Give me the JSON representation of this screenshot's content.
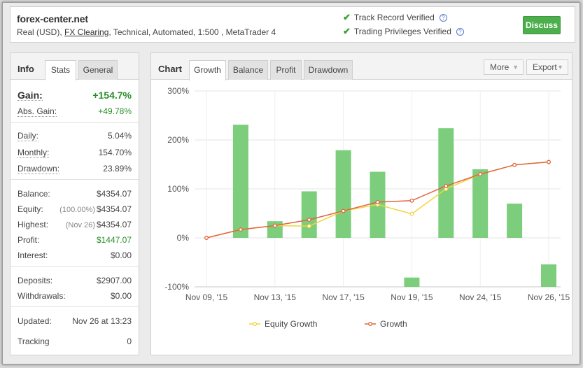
{
  "header": {
    "site": "forex-center.net",
    "desc_prefix": "Real (USD), ",
    "desc_link": "FX Clearing",
    "desc_suffix": ", Technical, Automated, 1:500 , MetaTrader 4",
    "verified_1": "Track Record Verified",
    "verified_2": "Trading Privileges Verified",
    "discuss_label": "Discuss"
  },
  "info": {
    "title": "Info",
    "tabs": [
      "Stats",
      "General"
    ],
    "gain_label": "Gain:",
    "gain_value": "+154.7%",
    "abs_gain_label": "Abs. Gain:",
    "abs_gain_value": "+49.78%",
    "daily_label": "Daily:",
    "daily_value": "5.04%",
    "monthly_label": "Monthly:",
    "monthly_value": "154.70%",
    "drawdown_label": "Drawdown:",
    "drawdown_value": "23.89%",
    "balance_label": "Balance:",
    "balance_value": "$4354.07",
    "equity_label": "Equity:",
    "equity_sub": "(100.00%)",
    "equity_value": "$4354.07",
    "highest_label": "Highest:",
    "highest_sub": "(Nov 26)",
    "highest_value": "$4354.07",
    "profit_label": "Profit:",
    "profit_value": "$1447.07",
    "interest_label": "Interest:",
    "interest_value": "$0.00",
    "deposits_label": "Deposits:",
    "deposits_value": "$2907.00",
    "withdrawals_label": "Withdrawals:",
    "withdrawals_value": "$0.00",
    "updated_label": "Updated:",
    "updated_value": "Nov 26 at 13:23",
    "tracking_label": "Tracking",
    "tracking_value": "0"
  },
  "chart_panel": {
    "title": "Chart",
    "tabs": [
      "Growth",
      "Balance",
      "Profit",
      "Drawdown"
    ],
    "more_label": "More",
    "export_label": "Export"
  },
  "colors": {
    "bar": "#7ccd7c",
    "equity_line": "#f2d43c",
    "growth_line": "#e0653f"
  },
  "chart_data": {
    "type": "bar",
    "ylim": [
      -100,
      300
    ],
    "yticks": [
      -100,
      0,
      100,
      200,
      300
    ],
    "ytick_labels": [
      "-100%",
      "0%",
      "100%",
      "200%",
      "300%"
    ],
    "xtick_labels": [
      "Nov 09, '15",
      "Nov 13, '15",
      "Nov 17, '15",
      "Nov 19, '15",
      "Nov 24, '15",
      "Nov 26, '15"
    ],
    "xtick_positions": [
      0,
      2,
      4,
      6,
      8,
      10
    ],
    "bars": [
      {
        "x": 1,
        "value": 231
      },
      {
        "x": 2,
        "value": 34
      },
      {
        "x": 3,
        "value": 95
      },
      {
        "x": 4,
        "value": 179
      },
      {
        "x": 5,
        "value": 135
      },
      {
        "x": 6,
        "value": -81
      },
      {
        "x": 7,
        "value": 224
      },
      {
        "x": 8,
        "value": 140
      },
      {
        "x": 9,
        "value": 70
      },
      {
        "x": 10,
        "value": -54
      }
    ],
    "series": [
      {
        "name": "Equity Growth",
        "x": [
          0,
          1,
          2,
          3,
          4,
          5,
          6,
          7,
          8,
          9,
          10
        ],
        "values": [
          0,
          17,
          25,
          24,
          55,
          68,
          49,
          100,
          130,
          149,
          155
        ]
      },
      {
        "name": "Growth",
        "x": [
          0,
          1,
          2,
          3,
          4,
          5,
          6,
          7,
          8,
          9,
          10
        ],
        "values": [
          0,
          17,
          25,
          37,
          55,
          73,
          76,
          106,
          130,
          149,
          155
        ]
      }
    ],
    "legend_position": "bottom"
  }
}
